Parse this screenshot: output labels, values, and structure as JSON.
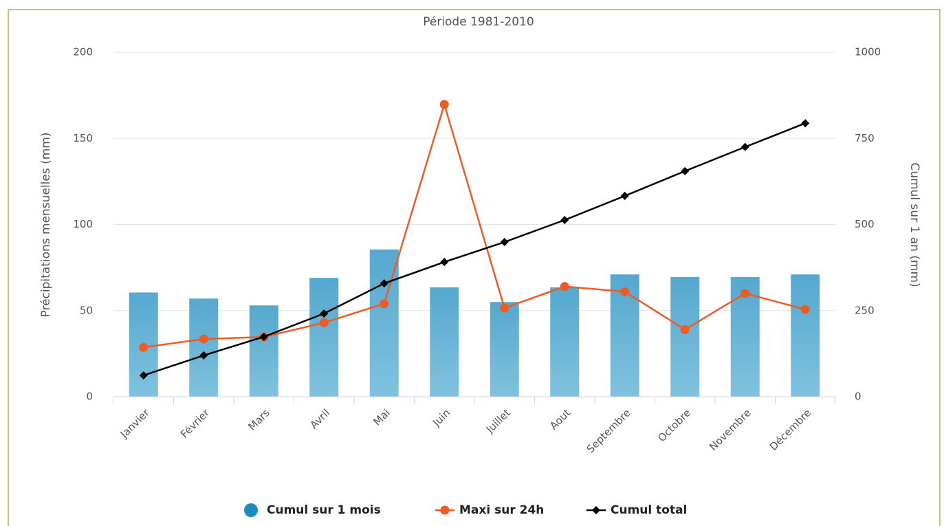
{
  "chart_data": {
    "type": "combo",
    "title": "Période 1981-2010",
    "categories": [
      "Janvier",
      "Février",
      "Mars",
      "Avril",
      "Mai",
      "Juin",
      "Juillet",
      "Aout",
      "Septembre",
      "Octobre",
      "Novembre",
      "Décembre"
    ],
    "ylabel": "Précipitations mensuelles (mm)",
    "y2label": "Cumul sur 1 an (mm)",
    "ylim": [
      0,
      200
    ],
    "yticks": [
      0,
      50,
      100,
      150,
      200
    ],
    "y2lim": [
      0,
      1000
    ],
    "y2ticks": [
      0,
      250,
      500,
      750,
      1000
    ],
    "grid": true,
    "series": [
      {
        "name": "Cumul sur 1 mois",
        "type": "bar",
        "color": "#5aabd0",
        "values": [
          60.5,
          57,
          53,
          69,
          85.5,
          63.5,
          55,
          63.5,
          71,
          69.5,
          69.5,
          71
        ]
      },
      {
        "name": "Maxi sur 24h",
        "type": "line",
        "marker": "circle",
        "color": "#f05a23",
        "values": [
          28.7,
          33.5,
          34.7,
          43,
          54,
          169.7,
          51.5,
          64,
          61,
          39,
          60,
          50.7
        ]
      },
      {
        "name": "Cumul total",
        "type": "line",
        "marker": "diamond",
        "axis": "y2",
        "color": "#000000",
        "values": [
          62,
          120,
          174,
          241.5,
          329,
          391,
          449,
          513,
          583,
          655,
          725,
          794
        ]
      }
    ]
  }
}
